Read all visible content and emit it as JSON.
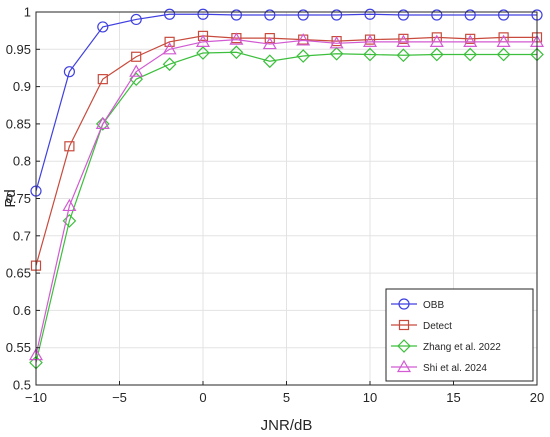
{
  "chart_data": {
    "type": "line",
    "title": "",
    "xlabel": "JNR/dB",
    "ylabel": "Pd",
    "xlim": [
      -10,
      20
    ],
    "ylim": [
      0.5,
      1
    ],
    "xticks": [
      -10,
      -5,
      0,
      5,
      10,
      15,
      20
    ],
    "xtick_labels": [
      "−10",
      "−5",
      "0",
      "5",
      "10",
      "15",
      "20"
    ],
    "yticks": [
      0.5,
      0.55,
      0.6,
      0.65,
      0.7,
      0.75,
      0.8,
      0.85,
      0.9,
      0.95,
      1
    ],
    "ytick_labels": [
      "0.5",
      "0.55",
      "0.6",
      "0.65",
      "0.7",
      "0.75",
      "0.8",
      "0.85",
      "0.9",
      "0.95",
      "1"
    ],
    "grid": true,
    "legend": "bottom-right",
    "x": [
      -10,
      -8,
      -6,
      -4,
      -2,
      0,
      2,
      4,
      6,
      8,
      10,
      12,
      14,
      16,
      18,
      20
    ],
    "series": [
      {
        "name": "OBB",
        "color": "#4040e0",
        "marker": "circle",
        "values": [
          0.76,
          0.92,
          0.98,
          0.99,
          0.997,
          0.997,
          0.996,
          0.996,
          0.996,
          0.996,
          0.997,
          0.996,
          0.996,
          0.996,
          0.996,
          0.996
        ]
      },
      {
        "name": "Detect",
        "color": "#c84a3c",
        "marker": "square",
        "values": [
          0.66,
          0.82,
          0.91,
          0.94,
          0.96,
          0.968,
          0.965,
          0.965,
          0.963,
          0.961,
          0.963,
          0.964,
          0.966,
          0.964,
          0.966,
          0.966
        ]
      },
      {
        "name": "Zhang et al. 2022",
        "color": "#3cbf3c",
        "marker": "diamond",
        "values": [
          0.53,
          0.72,
          0.85,
          0.91,
          0.93,
          0.945,
          0.946,
          0.934,
          0.941,
          0.944,
          0.943,
          0.942,
          0.943,
          0.943,
          0.943,
          0.943
        ]
      },
      {
        "name": "Shi et al. 2024",
        "color": "#d25ad2",
        "marker": "triangle",
        "values": [
          0.54,
          0.74,
          0.85,
          0.92,
          0.95,
          0.96,
          0.963,
          0.957,
          0.962,
          0.958,
          0.96,
          0.96,
          0.96,
          0.96,
          0.96,
          0.96
        ]
      }
    ]
  }
}
